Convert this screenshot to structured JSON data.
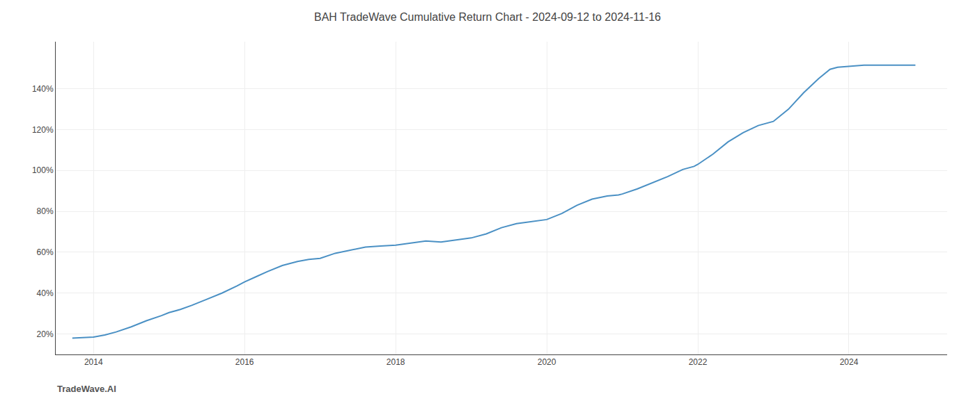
{
  "chart_data": {
    "type": "line",
    "title": "BAH TradeWave Cumulative Return Chart - 2024-09-12 to 2024-11-16",
    "annotations": [
      {
        "text": "TradeWave.AI"
      }
    ],
    "color": "#4a90c4",
    "x": [
      2013.72,
      2013.85,
      2014.0,
      2014.15,
      2014.3,
      2014.5,
      2014.7,
      2014.9,
      2015.0,
      2015.15,
      2015.3,
      2015.5,
      2015.7,
      2015.9,
      2016.0,
      2016.15,
      2016.3,
      2016.5,
      2016.7,
      2016.85,
      2017.0,
      2017.2,
      2017.4,
      2017.6,
      2017.8,
      2017.95,
      2018.0,
      2018.2,
      2018.4,
      2018.6,
      2018.8,
      2018.95,
      2019.0,
      2019.2,
      2019.4,
      2019.6,
      2019.8,
      2019.95,
      2020.0,
      2020.2,
      2020.4,
      2020.6,
      2020.8,
      2020.95,
      2021.0,
      2021.2,
      2021.4,
      2021.6,
      2021.8,
      2021.95,
      2022.0,
      2022.2,
      2022.4,
      2022.6,
      2022.8,
      2022.95,
      2023.0,
      2023.2,
      2023.4,
      2023.6,
      2023.75,
      2023.85,
      2024.0,
      2024.2,
      2024.5,
      2024.7,
      2024.88
    ],
    "values": [
      18.0,
      18.2,
      18.5,
      19.5,
      21.0,
      23.5,
      26.5,
      29.0,
      30.5,
      32.0,
      34.0,
      37.0,
      40.0,
      43.5,
      45.5,
      48.0,
      50.5,
      53.5,
      55.5,
      56.5,
      57.0,
      59.5,
      61.0,
      62.5,
      63.0,
      63.5,
      63.5,
      64.5,
      65.5,
      65.0,
      66.0,
      66.5,
      67.0,
      69.0,
      72.0,
      74.0,
      75.0,
      75.5,
      76.0,
      79.0,
      83.0,
      86.0,
      87.5,
      88.0,
      88.5,
      91.0,
      94.0,
      97.0,
      100.5,
      102.0,
      103.0,
      108.0,
      114.0,
      118.5,
      122.0,
      123.5,
      124.0,
      130.0,
      138.0,
      145.0,
      149.5,
      150.5,
      151.0,
      151.5,
      151.5,
      151.5,
      151.5
    ],
    "xlim": [
      2013.5,
      2025.3
    ],
    "ylim": [
      10,
      163
    ],
    "xticks": [
      2014,
      2016,
      2018,
      2020,
      2022,
      2024
    ],
    "yticks": [
      {
        "value": 20,
        "label": "20%"
      },
      {
        "value": 40,
        "label": "40%"
      },
      {
        "value": 60,
        "label": "60%"
      },
      {
        "value": 80,
        "label": "80%"
      },
      {
        "value": 100,
        "label": "100%"
      },
      {
        "value": 120,
        "label": "120%"
      },
      {
        "value": 140,
        "label": "140%"
      }
    ],
    "grid": true
  }
}
